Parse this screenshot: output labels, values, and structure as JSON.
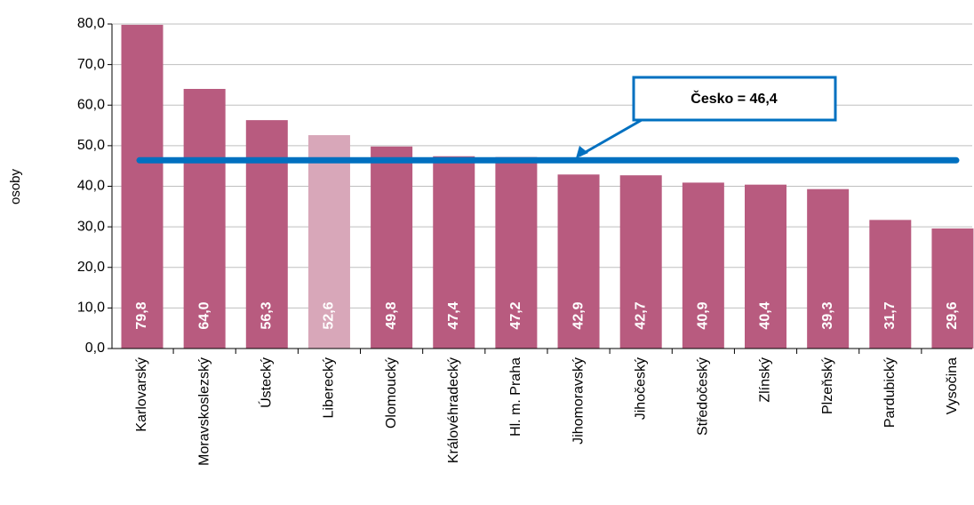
{
  "chart_data": {
    "type": "bar",
    "y_label": "osoby",
    "categories": [
      "Karlovarský",
      "Moravskoslezský",
      "Ústecký",
      "Liberecký",
      "Olomoucký",
      "Královéhradecký",
      "Hl. m. Praha",
      "Jihomoravský",
      "Jihočeský",
      "Středočeský",
      "Zlínský",
      "Plzeňský",
      "Pardubický",
      "Vysočina"
    ],
    "values": [
      79.8,
      64.0,
      56.3,
      52.6,
      49.8,
      47.4,
      47.2,
      42.9,
      42.7,
      40.9,
      40.4,
      39.3,
      31.7,
      29.6
    ],
    "value_labels": [
      "79,8",
      "64,0",
      "56,3",
      "52,6",
      "49,8",
      "47,4",
      "47,2",
      "42,9",
      "42,7",
      "40,9",
      "40,4",
      "39,3",
      "31,7",
      "29,6"
    ],
    "colors": [
      "#b85b7f",
      "#b85b7f",
      "#b85b7f",
      "#d8a7b9",
      "#b85b7f",
      "#b85b7f",
      "#b85b7f",
      "#b85b7f",
      "#b85b7f",
      "#b85b7f",
      "#b85b7f",
      "#b85b7f",
      "#b85b7f",
      "#b85b7f"
    ],
    "ylim": [
      0,
      80
    ],
    "yticks": [
      {
        "value": 0,
        "label": "0,0"
      },
      {
        "value": 10,
        "label": "10,0"
      },
      {
        "value": 20,
        "label": "20,0"
      },
      {
        "value": 30,
        "label": "30,0"
      },
      {
        "value": 40,
        "label": "40,0"
      },
      {
        "value": 50,
        "label": "50,0"
      },
      {
        "value": 60,
        "label": "60,0"
      },
      {
        "value": 70,
        "label": "70,0"
      },
      {
        "value": 80,
        "label": "80,0"
      }
    ],
    "grid": true,
    "reference_line": {
      "value": 46.4,
      "label": "Česko = 46,4",
      "color": "#0070c0"
    }
  }
}
